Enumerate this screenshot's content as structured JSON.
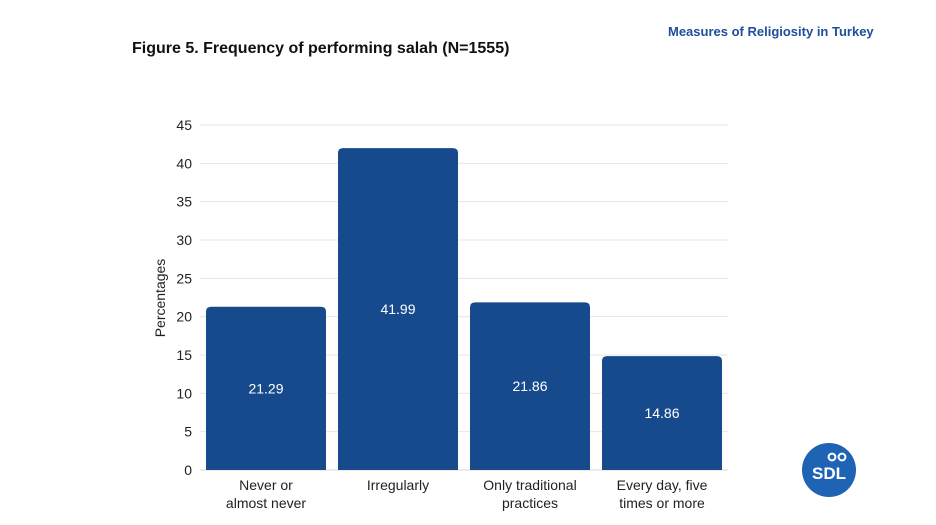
{
  "header": {
    "title": "Measures of Religiosity in Turkey"
  },
  "figure": {
    "title": "Figure 5.  Frequency of performing salah (N=1555)"
  },
  "logo": {
    "text": "SDL",
    "color": "#1f63b5"
  },
  "chart_data": {
    "type": "bar",
    "categories": [
      [
        "Never or",
        "almost never"
      ],
      [
        "Irregularly"
      ],
      [
        "Only traditional",
        "practices"
      ],
      [
        "Every day, five",
        "times or more"
      ]
    ],
    "values": [
      21.29,
      41.99,
      21.86,
      14.86
    ],
    "value_labels": [
      "21.29",
      "41.99",
      "21.86",
      "14.86"
    ],
    "ylabel": "Percentages",
    "xlabel": "",
    "ylim": [
      0,
      45
    ],
    "yticks": [
      0,
      5,
      10,
      15,
      20,
      25,
      30,
      35,
      40,
      45
    ],
    "grid": true,
    "bar_color": "#174a8c",
    "label_color": "#ffffff"
  }
}
